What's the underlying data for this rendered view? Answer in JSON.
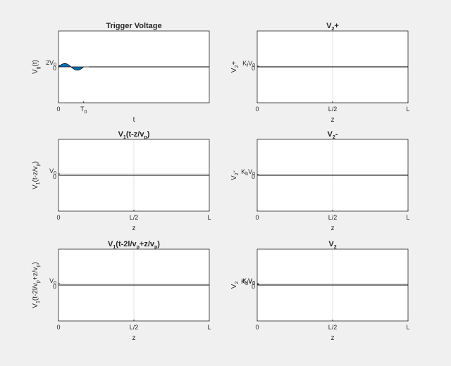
{
  "chart_data": [
    {
      "type": "area",
      "title": "Trigger Voltage",
      "title_sub": "",
      "title_rest": "",
      "xlabel": "t",
      "ylabel": "V",
      "ylabel_sub": "g",
      "ylabel_rest": "(t)",
      "x_ticks": [
        "0",
        "T"
      ],
      "x_tick_sub": [
        "",
        "0"
      ],
      "y_ticks": [
        "2V",
        "0"
      ],
      "y_tick_sub": [
        "0",
        ""
      ],
      "xlim": [
        0,
        6
      ],
      "ylim": [
        -1,
        1
      ],
      "x_tick_values": [
        0,
        1
      ],
      "y_tick_values": [
        0.04,
        0
      ],
      "x": [
        0,
        0.05,
        0.1,
        0.15,
        0.2,
        0.25,
        0.3,
        0.35,
        0.4,
        0.45,
        0.5,
        0.55,
        0.6,
        0.65,
        0.7,
        0.75,
        0.8,
        0.85,
        0.9,
        0.95,
        1.0,
        1.05,
        1.1,
        1.15,
        1.2
      ],
      "y": [
        0,
        0.03,
        0.055,
        0.075,
        0.088,
        0.092,
        0.088,
        0.075,
        0.055,
        0.03,
        0,
        -0.03,
        -0.055,
        -0.075,
        -0.088,
        -0.092,
        -0.088,
        -0.075,
        -0.055,
        -0.03,
        0,
        0,
        0,
        0,
        0
      ],
      "fill_color": "#0072bd",
      "grid": false
    },
    {
      "type": "line",
      "title": "V",
      "title_sub": "2",
      "title_rest": "+",
      "xlabel": "z",
      "ylabel": "V",
      "ylabel_sub": "2",
      "ylabel_rest": "+",
      "x_ticks": [
        "0",
        "L/2",
        "L"
      ],
      "y_ticks": [
        "K",
        "0"
      ],
      "y_tick_extra": "V",
      "y_tick_sub": [
        "f",
        "0"
      ],
      "xlim": [
        0,
        1
      ],
      "ylim": [
        -1,
        1
      ],
      "x_tick_values": [
        0,
        0.5,
        1
      ],
      "y_tick_values": [
        0.02,
        0
      ],
      "x": [
        0,
        1
      ],
      "y": [
        0,
        0
      ],
      "grid": true
    },
    {
      "type": "line",
      "title": "V",
      "title_sub": "1",
      "title_rest": "(t-z/v",
      "title_sub2": "p",
      "title_end": ")",
      "xlabel": "z",
      "ylabel": "V",
      "ylabel_sub": "1",
      "ylabel_rest": "(t-z/v",
      "ylabel_sub2": "p",
      "ylabel_end": ")",
      "x_ticks": [
        "0",
        "L/2",
        "L"
      ],
      "y_ticks": [
        "V",
        "0"
      ],
      "y_tick_sub": [
        "0",
        ""
      ],
      "xlim": [
        0,
        1
      ],
      "ylim": [
        -1,
        1
      ],
      "x_tick_values": [
        0,
        0.5,
        1
      ],
      "y_tick_values": [
        0.04,
        0
      ],
      "x": [
        0,
        1
      ],
      "y": [
        0,
        0
      ],
      "grid": true
    },
    {
      "type": "line",
      "title": "V",
      "title_sub": "2",
      "title_rest": "-",
      "xlabel": "z",
      "ylabel": "V",
      "ylabel_sub": "2",
      "ylabel_rest": "-",
      "x_ticks": [
        "0",
        "L/2",
        "L"
      ],
      "y_ticks": [
        "K",
        "0"
      ],
      "y_tick_extra": "V",
      "y_tick_sub": [
        "b",
        "0"
      ],
      "xlim": [
        0,
        1
      ],
      "ylim": [
        -1,
        1
      ],
      "x_tick_values": [
        0,
        0.5,
        1
      ],
      "y_tick_values": [
        0.02,
        0
      ],
      "x": [
        0,
        1
      ],
      "y": [
        0,
        0
      ],
      "grid": true
    },
    {
      "type": "line",
      "title": "V",
      "title_sub": "1",
      "title_rest": "(t-2l/v",
      "title_sub2": "p",
      "title_mid": "+z/v",
      "title_sub3": "p",
      "title_end": ")",
      "xlabel": "z",
      "ylabel": "V",
      "ylabel_sub": "1",
      "ylabel_rest": "(t-2l/v",
      "ylabel_sub2": "p",
      "ylabel_mid": "+z/v",
      "ylabel_sub3": "p",
      "ylabel_end": ")",
      "x_ticks": [
        "0",
        "L/2",
        "L"
      ],
      "y_ticks": [
        "V",
        "0"
      ],
      "y_tick_sub": [
        "0",
        ""
      ],
      "xlim": [
        0,
        1
      ],
      "ylim": [
        -1,
        1
      ],
      "x_tick_values": [
        0,
        0.5,
        1
      ],
      "y_tick_values": [
        0.04,
        0
      ],
      "x": [
        0,
        1
      ],
      "y": [
        0,
        0
      ],
      "grid": true
    },
    {
      "type": "line",
      "title": "V",
      "title_sub": "2",
      "title_rest": "",
      "xlabel": "z",
      "ylabel": "V",
      "ylabel_sub": "2",
      "ylabel_rest": "",
      "x_ticks": [
        "0",
        "L/2",
        "L"
      ],
      "y_ticks": [
        "K",
        "K",
        "0"
      ],
      "y_tick_extra": "V",
      "y_tick_sub": [
        "f",
        "b",
        "0"
      ],
      "xlim": [
        0,
        1
      ],
      "ylim": [
        -1,
        1
      ],
      "x_tick_values": [
        0,
        0.5,
        1
      ],
      "y_tick_values": [
        0.04,
        0.02,
        0
      ],
      "x": [
        0,
        1
      ],
      "y": [
        0,
        0
      ],
      "grid": true
    }
  ]
}
